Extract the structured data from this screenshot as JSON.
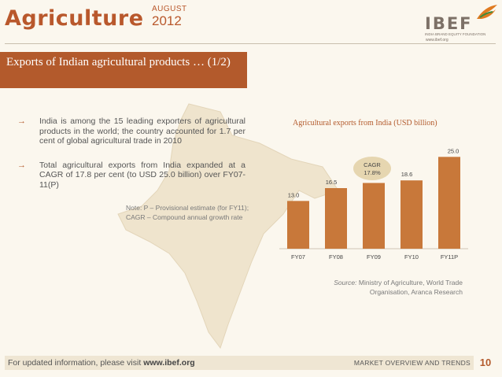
{
  "header": {
    "title": "Agriculture",
    "month": "AUGUST",
    "year": "2012",
    "logo_text": "IBEF",
    "logo_sub": "INDIA BRAND EQUITY FOUNDATION",
    "logo_url": "www.ibef.org"
  },
  "banner": {
    "text": "Exports of Indian agricultural products … (1/2)"
  },
  "bullets": [
    {
      "text": "India is among the 15 leading exporters of agricultural products in the world; the country accounted for 1.7 per cent of global agricultural trade in 2010"
    },
    {
      "text": "Total agricultural exports from India expanded at a CAGR of 17.8 per cent (to USD 25.0 billion) over FY07-11(P)"
    }
  ],
  "note": {
    "line1": "Note: P – Provisional estimate (for FY11);",
    "line2": "CAGR – Compound annual growth rate"
  },
  "chart_data": {
    "type": "bar",
    "title": "Agricultural exports from India (USD billion)",
    "categories": [
      "FY07",
      "FY08",
      "FY09",
      "FY10",
      "FY11P"
    ],
    "values": [
      13.0,
      16.5,
      17.9,
      18.6,
      25.0
    ],
    "value_labels": [
      "13.0",
      "16.5",
      "17.9",
      "18.6",
      "25.0"
    ],
    "annotation": {
      "line1": "CAGR",
      "line2": "17.8%"
    },
    "bar_color": "#c8783a",
    "ylim": [
      0,
      27
    ]
  },
  "source": {
    "label": "Source:",
    "text": "Ministry of Agriculture, World Trade Organisation, Aranca Research"
  },
  "footer": {
    "left_prefix": "For updated information, please visit",
    "left_url": "www.ibef.org",
    "right": "MARKET OVERVIEW AND TRENDS",
    "page": "10"
  },
  "colors": {
    "accent": "#b35a2c",
    "background": "#fbf7ee"
  }
}
